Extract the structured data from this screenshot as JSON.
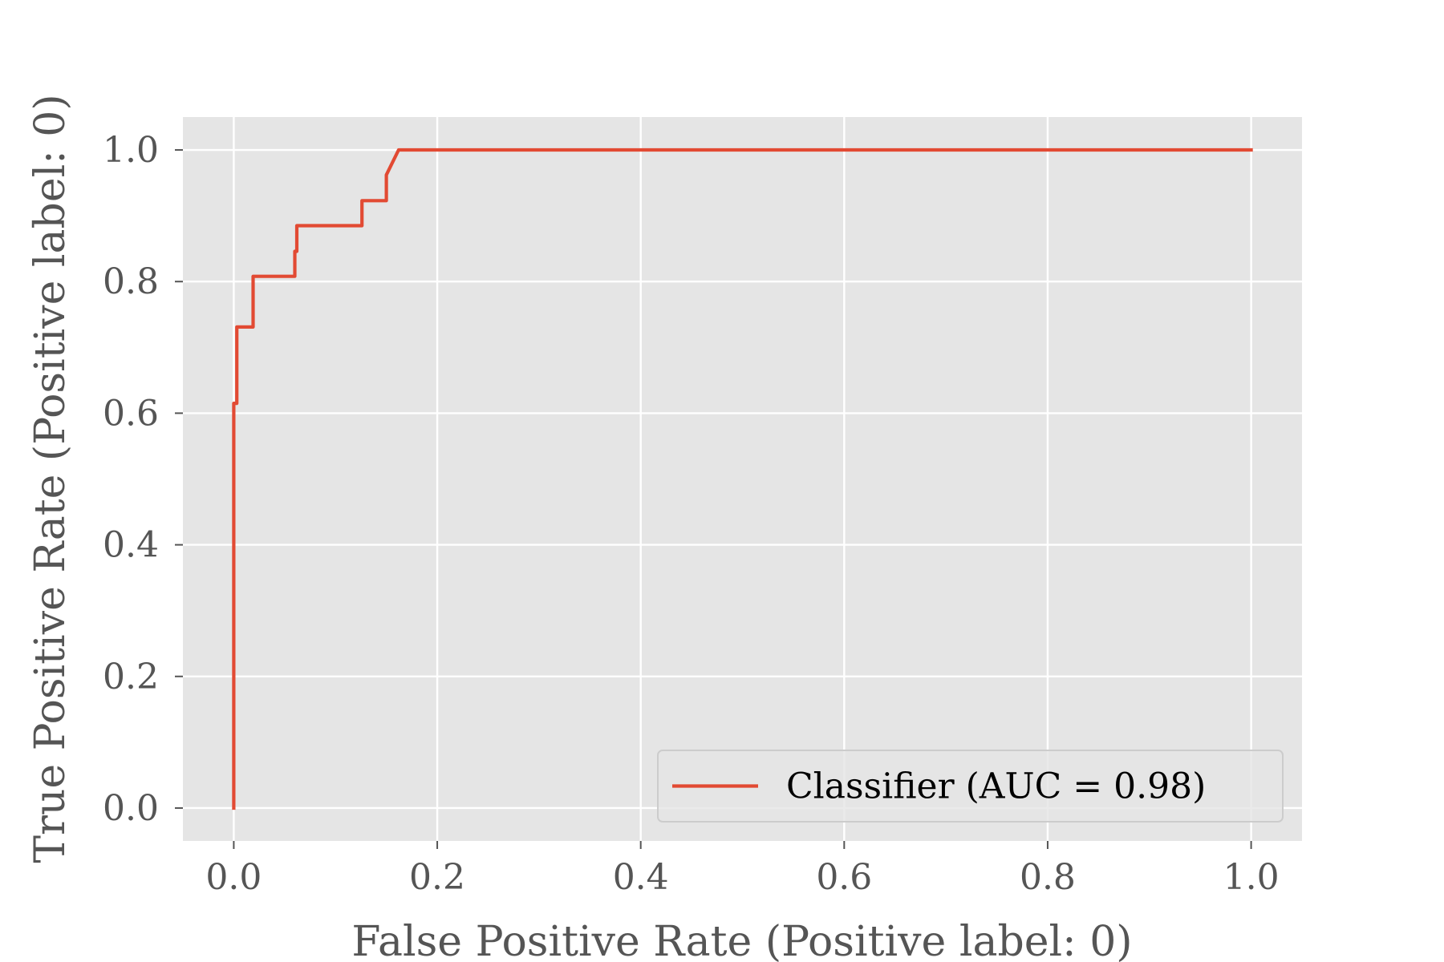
{
  "chart_data": {
    "type": "line",
    "title": "",
    "xlabel": "False Positive Rate (Positive label: 0)",
    "ylabel": "True Positive Rate (Positive label: 0)",
    "xlim": [
      -0.05,
      1.05
    ],
    "ylim": [
      -0.05,
      1.05
    ],
    "xticks": [
      "0.0",
      "0.2",
      "0.4",
      "0.6",
      "0.8",
      "1.0"
    ],
    "yticks": [
      "0.0",
      "0.2",
      "0.4",
      "0.6",
      "0.8",
      "1.0"
    ],
    "grid": true,
    "legend_position": "lower-right",
    "background_color": "#e5e5e5",
    "series": [
      {
        "name": "Classifier (AUC = 0.98)",
        "color": "#e24a33",
        "x": [
          0.0,
          0.0,
          0.003,
          0.003,
          0.019,
          0.019,
          0.06,
          0.06,
          0.062,
          0.062,
          0.126,
          0.126,
          0.15,
          0.15,
          0.162,
          1.0
        ],
        "y": [
          0.0,
          0.615,
          0.615,
          0.731,
          0.731,
          0.808,
          0.808,
          0.846,
          0.846,
          0.885,
          0.885,
          0.923,
          0.923,
          0.962,
          1.0,
          1.0
        ]
      }
    ]
  }
}
